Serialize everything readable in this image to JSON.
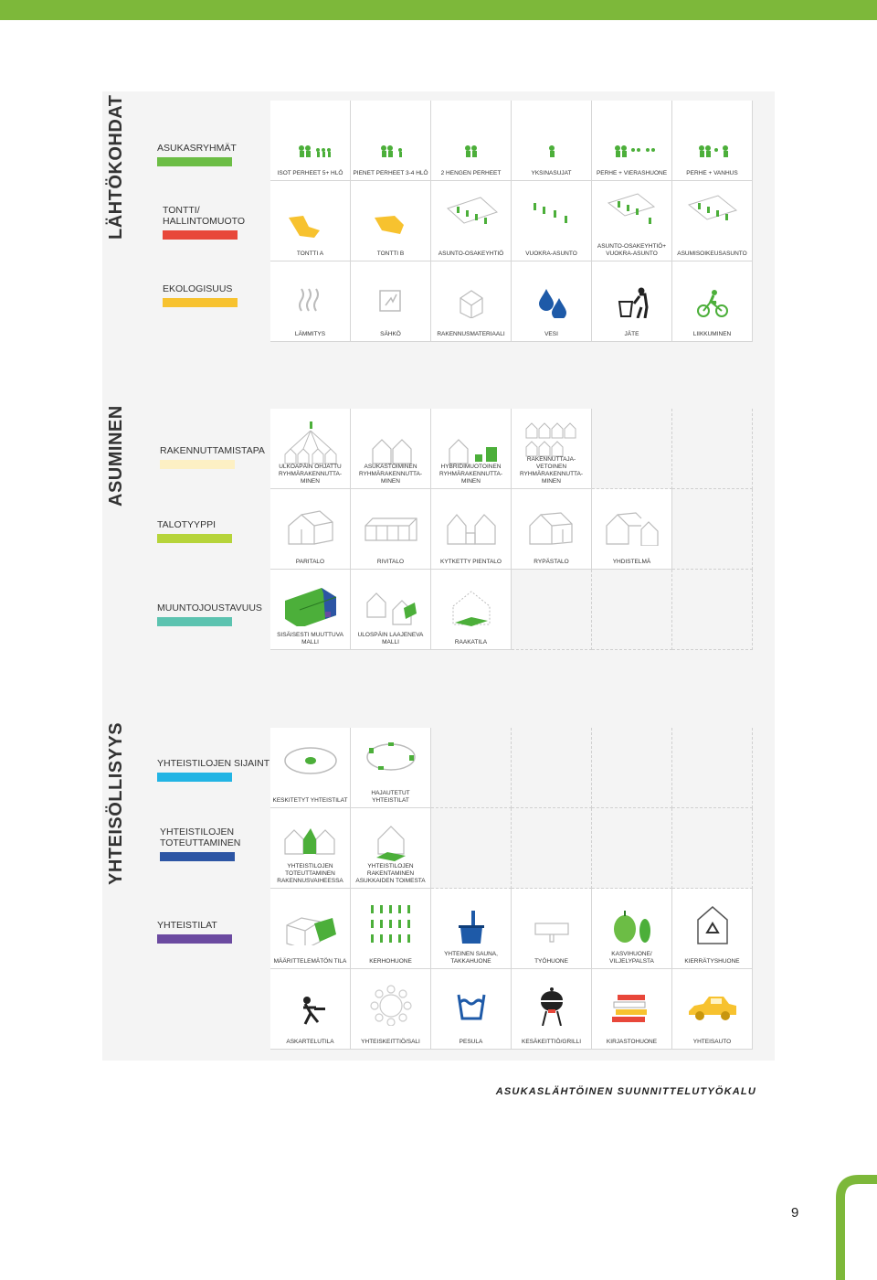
{
  "colors": {
    "accent_green": "#7db83a",
    "asukasryhmat": "#6cbd45",
    "tontti": "#e8473a",
    "ekologisuus": "#f7c22f",
    "rakennuttamistapa": "#fdf0c4",
    "talotyyppi": "#b6d43a",
    "muuntojoustavuus": "#5cc3b0",
    "yhteistilojen_sijainti": "#22b4e4",
    "yhteistilojen_toteuttaminen": "#2c55a4",
    "yhteistilat": "#6b4aa0"
  },
  "sections": {
    "lahtokohdat": {
      "title": "LÄHTÖKOHDAT",
      "categories": [
        "ASUKASRYHMÄT",
        "TONTTI/ HALLINTOMUOTO",
        "EKOLOGISUUS"
      ],
      "rows": [
        [
          "ISOT PERHEET 5+ HLÖ",
          "PIENET PERHEET 3-4 HLÖ",
          "2 HENGEN PERHEET",
          "YKSINASUJAT",
          "PERHE + VIERASHUONE",
          "PERHE + VANHUS"
        ],
        [
          "TONTTI A",
          "TONTTI B",
          "ASUNTO-OSAKEYHTIÖ",
          "VUOKRA-ASUNTO",
          "ASUNTO-OSAKEYHTIÖ+ VUOKRA-ASUNTO",
          "ASUMISOIKEUSASUNTO"
        ],
        [
          "LÄMMITYS",
          "SÄHKÖ",
          "RAKENNUSMATERIAALI",
          "VESI",
          "JÄTE",
          "LIIKKUMINEN"
        ]
      ]
    },
    "asuminen": {
      "title": "ASUMINEN",
      "categories": [
        "RAKENNUTTAMISTAPA",
        "TALOTYYPPI",
        "MUUNTOJOUSTAVUUS"
      ],
      "rows": [
        [
          "ULKOAPÄIN OHJATTU RYHMÄRAKENNUTTA-MINEN",
          "ASUKASTOIMINEN RYHMÄRAKENNUTTA-MINEN",
          "HYBRIDIMUOTOINEN RYHMÄRAKENNUTTA-MINEN",
          "RAKENNUTTAJA-VETOINEN RYHMÄRAKENNUTTA-MINEN"
        ],
        [
          "PARITALO",
          "RIVITALO",
          "KYTKETTY PIENTALO",
          "RYPÄSTALO",
          "YHDISTELMÄ"
        ],
        [
          "SISÄISESTI MUUTTUVA MALLI",
          "ULOSPÄIN LAAJENEVA MALLI",
          "RAAKATILA"
        ]
      ]
    },
    "yhteisollisyys": {
      "title": "YHTEISÖLLISYYS",
      "categories": [
        "YHTEISTILOJEN SIJAINTI",
        "YHTEISTILOJEN TOTEUTTAMINEN",
        "YHTEISTILAT"
      ],
      "rows": [
        [
          "KESKITETYT YHTEISTILAT",
          "HAJAUTETUT YHTEISTILAT"
        ],
        [
          "YHTEISTILOJEN TOTEUTTAMINEN RAKENNUSVAIHEESSA",
          "YHTEISTILOJEN RAKENTAMINEN ASUKKAIDEN TOIMESTA"
        ],
        [
          "MÄÄRITTELEMÄTÖN TILA",
          "KERHOHUONE",
          "YHTEINEN SAUNA, TAKKAHUONE",
          "TYÖHUONE",
          "KASVIHUONE/ VILJELYPALSTA",
          "KIERRÄTYSHUONE"
        ],
        [
          "ASKARTELUTILA",
          "YHTEISKEITTIÖ/SALI",
          "PESULA",
          "KESÄKEITTIÖ/GRILLI",
          "KIRJASTOHUONE",
          "YHTEISAUTO"
        ]
      ]
    }
  },
  "footer": "ASUKASLÄHTÖINEN SUUNNITTELUTYÖKALU",
  "page_number": "9"
}
